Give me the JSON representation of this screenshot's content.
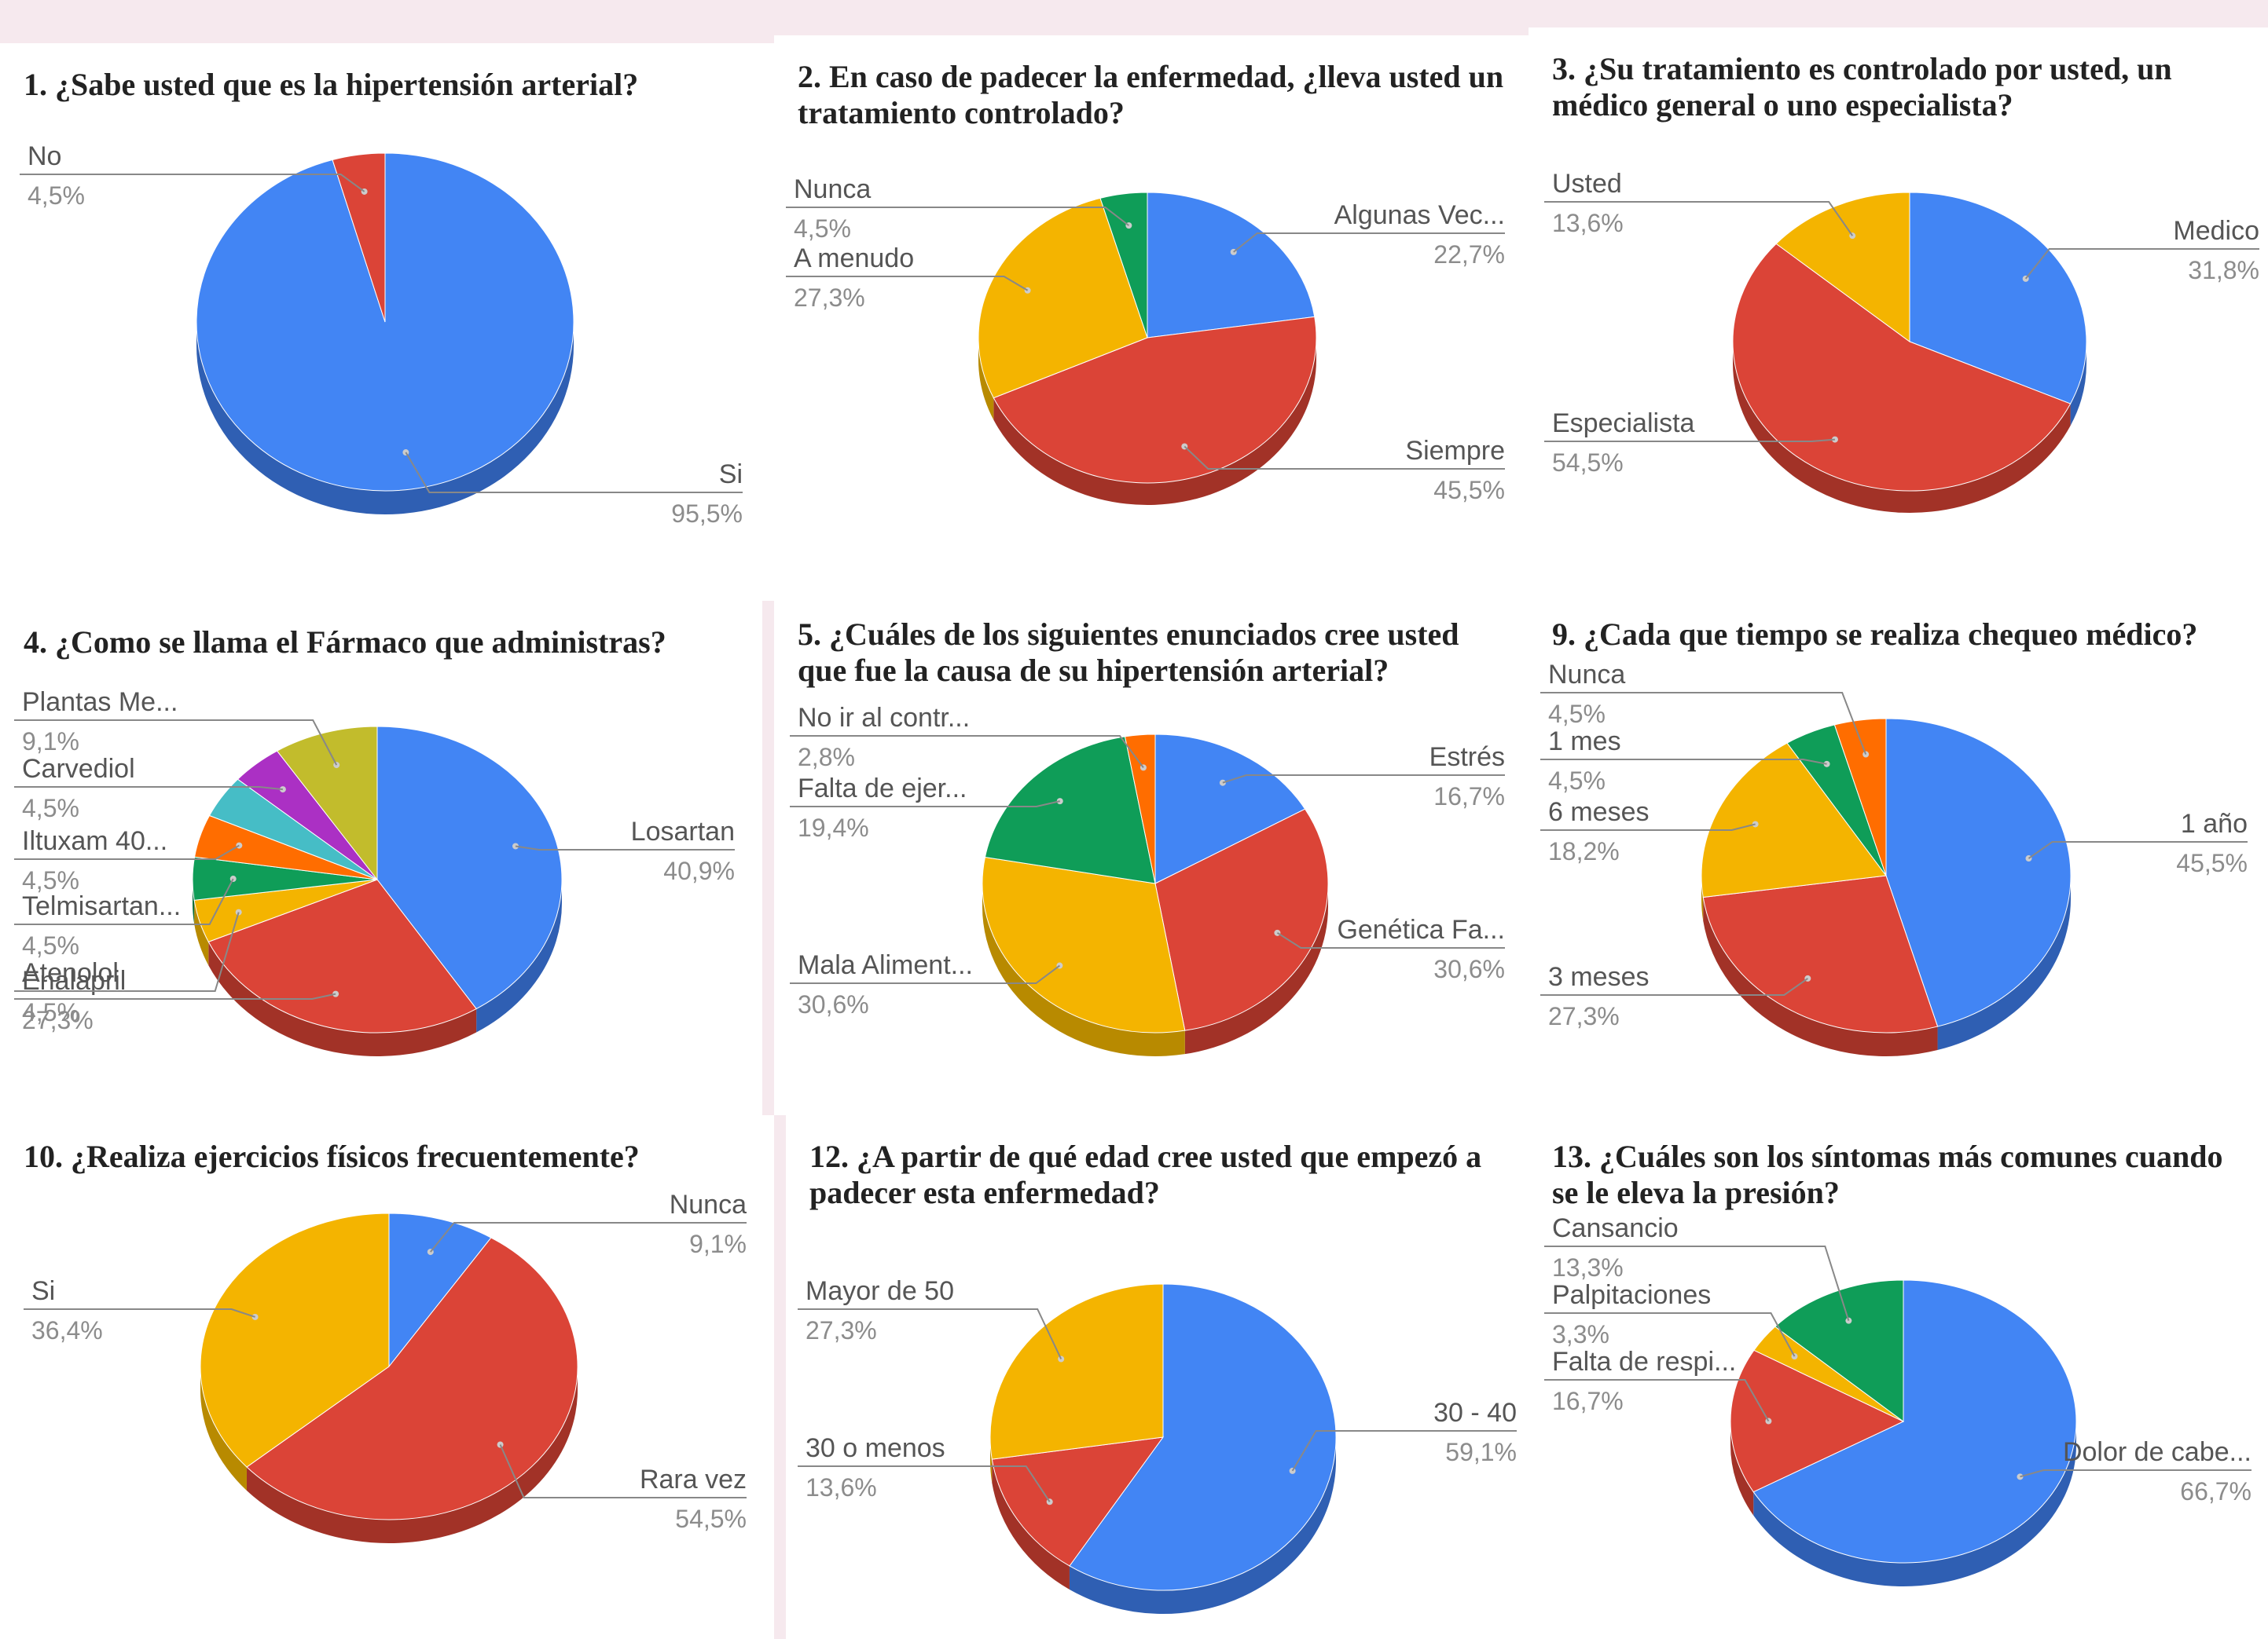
{
  "chart_data": [
    {
      "type": "pie",
      "title": "1. ¿Sabe usted que es la hipertensión arterial?",
      "slices": [
        {
          "label": "Si",
          "percent": "95,5%",
          "value": 95.5,
          "color": "#4285f4",
          "dark": "#2f5fb3"
        },
        {
          "label": "No",
          "percent": "4,5%",
          "value": 4.5,
          "color": "#db4437",
          "dark": "#a23227"
        }
      ]
    },
    {
      "type": "pie",
      "title": "2. En caso de padecer la enfermedad, ¿lleva usted un tratamiento controlado?",
      "slices": [
        {
          "label": "Algunas Vec...",
          "percent": "22,7%",
          "value": 22.7,
          "color": "#4285f4",
          "dark": "#2f5fb3"
        },
        {
          "label": "Siempre",
          "percent": "45,5%",
          "value": 45.5,
          "color": "#db4437",
          "dark": "#a23227"
        },
        {
          "label": "A menudo",
          "percent": "27,3%",
          "value": 27.3,
          "color": "#f4b400",
          "dark": "#b88a00"
        },
        {
          "label": "Nunca",
          "percent": "4,5%",
          "value": 4.5,
          "color": "#0f9d58",
          "dark": "#0a6e3d"
        }
      ]
    },
    {
      "type": "pie",
      "title": "3. ¿Su tratamiento es controlado por usted, un médico general o uno especialista?",
      "slices": [
        {
          "label": "Medico",
          "percent": "31,8%",
          "value": 31.8,
          "color": "#4285f4",
          "dark": "#2f5fb3"
        },
        {
          "label": "Especialista",
          "percent": "54,5%",
          "value": 54.5,
          "color": "#db4437",
          "dark": "#a23227"
        },
        {
          "label": "Usted",
          "percent": "13,6%",
          "value": 13.6,
          "color": "#f4b400",
          "dark": "#b88a00"
        }
      ]
    },
    {
      "type": "pie",
      "title": "4. ¿Como se llama el Fármaco que administras?",
      "slices": [
        {
          "label": "Losartan",
          "percent": "40,9%",
          "value": 40.9,
          "color": "#4285f4",
          "dark": "#2f5fb3"
        },
        {
          "label": "Enalapril",
          "percent": "27,3%",
          "value": 27.3,
          "color": "#db4437",
          "dark": "#a23227"
        },
        {
          "label": "Atenolol",
          "percent": "4,5%",
          "value": 4.5,
          "color": "#f4b400",
          "dark": "#b88a00"
        },
        {
          "label": "Telmisartan...",
          "percent": "4,5%",
          "value": 4.5,
          "color": "#0f9d58",
          "dark": "#0a6e3d"
        },
        {
          "label": "Iltuxam 40...",
          "percent": "4,5%",
          "value": 4.5,
          "color": "#ff6d00",
          "dark": "#b84f00"
        },
        {
          "label": "",
          "percent": "",
          "value": 4.5,
          "color": "#46bdc6",
          "dark": "#2f8a91"
        },
        {
          "label": "Carvediol",
          "percent": "4,5%",
          "value": 4.5,
          "color": "#ab30c4",
          "dark": "#7a228c"
        },
        {
          "label": "Plantas Me...",
          "percent": "9,1%",
          "value": 9.1,
          "color": "#c2bc2c",
          "dark": "#8e8a1f"
        }
      ]
    },
    {
      "type": "pie",
      "title": "5. ¿Cuáles de los siguientes enunciados cree usted que fue la causa de su hipertensión arterial?",
      "slices": [
        {
          "label": "Estrés",
          "percent": "16,7%",
          "value": 16.7,
          "color": "#4285f4",
          "dark": "#2f5fb3"
        },
        {
          "label": "Genética Fa...",
          "percent": "30,6%",
          "value": 30.6,
          "color": "#db4437",
          "dark": "#a23227"
        },
        {
          "label": "Mala Aliment...",
          "percent": "30,6%",
          "value": 30.6,
          "color": "#f4b400",
          "dark": "#b88a00"
        },
        {
          "label": "Falta de ejer...",
          "percent": "19,4%",
          "value": 19.4,
          "color": "#0f9d58",
          "dark": "#0a6e3d"
        },
        {
          "label": "No ir al contr...",
          "percent": "2,8%",
          "value": 2.8,
          "color": "#ff6d00",
          "dark": "#b84f00"
        }
      ]
    },
    {
      "type": "pie",
      "title": "9. ¿Cada que tiempo se realiza chequeo médico?",
      "slices": [
        {
          "label": "1 año",
          "percent": "45,5%",
          "value": 45.5,
          "color": "#4285f4",
          "dark": "#2f5fb3"
        },
        {
          "label": "3 meses",
          "percent": "27,3%",
          "value": 27.3,
          "color": "#db4437",
          "dark": "#a23227"
        },
        {
          "label": "6 meses",
          "percent": "18,2%",
          "value": 18.2,
          "color": "#f4b400",
          "dark": "#b88a00"
        },
        {
          "label": "1 mes",
          "percent": "4,5%",
          "value": 4.5,
          "color": "#0f9d58",
          "dark": "#0a6e3d"
        },
        {
          "label": "Nunca",
          "percent": "4,5%",
          "value": 4.5,
          "color": "#ff6d00",
          "dark": "#b84f00"
        }
      ]
    },
    {
      "type": "pie",
      "title": "10. ¿Realiza ejercicios físicos frecuentemente?",
      "slices": [
        {
          "label": "Nunca",
          "percent": "9,1%",
          "value": 9.1,
          "color": "#4285f4",
          "dark": "#2f5fb3"
        },
        {
          "label": "Rara vez",
          "percent": "54,5%",
          "value": 54.5,
          "color": "#db4437",
          "dark": "#a23227"
        },
        {
          "label": "Si",
          "percent": "36,4%",
          "value": 36.4,
          "color": "#f4b400",
          "dark": "#b88a00"
        }
      ]
    },
    {
      "type": "pie",
      "title": "12. ¿A partir de qué edad cree usted que empezó a padecer esta enfermedad?",
      "slices": [
        {
          "label": "30 - 40",
          "percent": "59,1%",
          "value": 59.1,
          "color": "#4285f4",
          "dark": "#2f5fb3"
        },
        {
          "label": "30 o menos",
          "percent": "13,6%",
          "value": 13.6,
          "color": "#db4437",
          "dark": "#a23227"
        },
        {
          "label": "Mayor de 50",
          "percent": "27,3%",
          "value": 27.3,
          "color": "#f4b400",
          "dark": "#b88a00"
        }
      ]
    },
    {
      "type": "pie",
      "title": "13. ¿Cuáles son los síntomas más comunes cuando se le eleva la presión?",
      "slices": [
        {
          "label": "Dolor de cabe...",
          "percent": "66,7%",
          "value": 66.7,
          "color": "#4285f4",
          "dark": "#2f5fb3"
        },
        {
          "label": "Falta de respi...",
          "percent": "16,7%",
          "value": 16.7,
          "color": "#db4437",
          "dark": "#a23227"
        },
        {
          "label": "Palpitaciones",
          "percent": "3,3%",
          "value": 3.3,
          "color": "#f4b400",
          "dark": "#b88a00"
        },
        {
          "label": "Cansancio",
          "percent": "13,3%",
          "value": 13.3,
          "color": "#0f9d58",
          "dark": "#0a6e3d"
        }
      ]
    }
  ]
}
